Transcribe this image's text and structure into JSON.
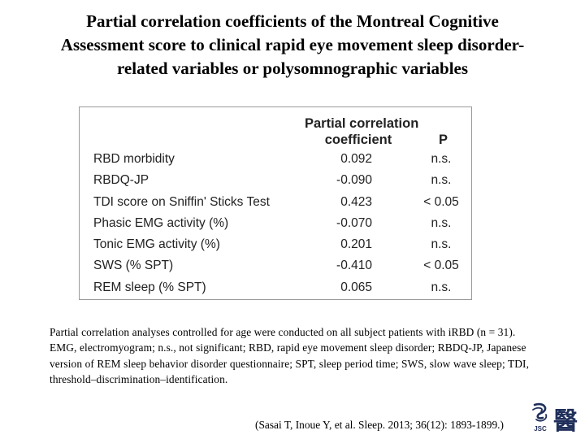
{
  "title": {
    "line1": "Partial correlation coefficients of the Montreal Cognitive",
    "line2": "Assessment score to clinical rapid eye movement sleep disorder-",
    "line3": "related variables or polysomnographic variables"
  },
  "table": {
    "header_coef_line1": "Partial correlation",
    "header_coef_line2": "coefficient",
    "header_p": "P",
    "rows": [
      {
        "variable": "RBD morbidity",
        "coefficient": "0.092",
        "p": "n.s."
      },
      {
        "variable": "RBDQ-JP",
        "coefficient": "-0.090",
        "p": "n.s."
      },
      {
        "variable": "TDI score on Sniffin' Sticks Test",
        "coefficient": "0.423",
        "p": "< 0.05"
      },
      {
        "variable": "Phasic EMG activity (%)",
        "coefficient": "-0.070",
        "p": "n.s."
      },
      {
        "variable": "Tonic EMG activity (%)",
        "coefficient": "0.201",
        "p": "n.s."
      },
      {
        "variable": "SWS (% SPT)",
        "coefficient": "-0.410",
        "p": "< 0.05"
      },
      {
        "variable": "REM sleep (% SPT)",
        "coefficient": "0.065",
        "p": "n.s."
      }
    ]
  },
  "footnote": "Partial correlation analyses controlled for age were conducted on all subject patients with iRBD (n = 31). EMG, electromyogram; n.s., not significant; RBD, rapid eye movement sleep disorder; RBDQ-JP, Japanese version of REM sleep behavior disorder questionnaire; SPT, sleep period time; SWS, slow wave sleep; TDI, threshold–discrimination–identification.",
  "citation": "(Sasai T, Inoue Y, et al. Sleep. 2013; 36(12): 1893-1899.)",
  "logo": {
    "icon": "jsc-logo-icon",
    "text": "JSC",
    "glyph": "醫",
    "color": "#1f2f5a"
  }
}
